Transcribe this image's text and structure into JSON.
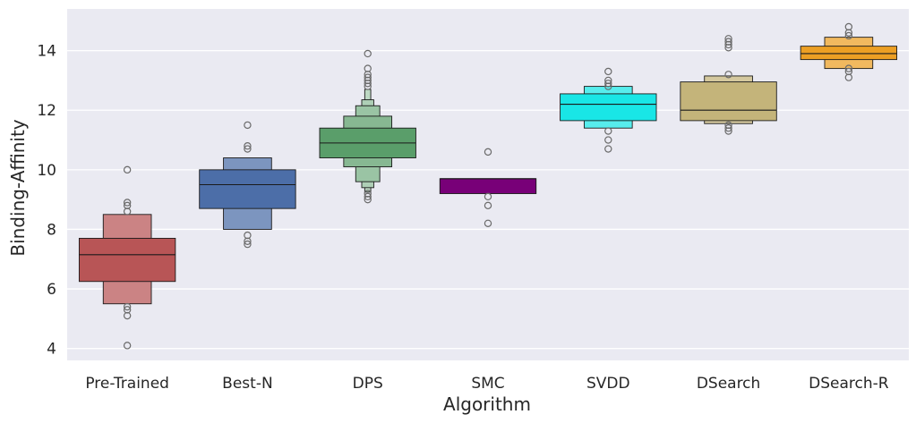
{
  "chart_data": {
    "type": "boxen",
    "title": "",
    "xlabel": "Algorithm",
    "ylabel": "Binding-Affinity",
    "ylim": [
      3.6,
      15.4
    ],
    "yticks": [
      4,
      6,
      8,
      10,
      12,
      14
    ],
    "grid": true,
    "background": "#eaeaf2",
    "categories": [
      "Pre-Trained",
      "Best-N",
      "DPS",
      "SMC",
      "SVDD",
      "DSearch",
      "DSearch-R"
    ],
    "series": [
      {
        "name": "Pre-Trained",
        "color": "#b85556",
        "median": 7.15,
        "levels": [
          [
            6.25,
            7.7
          ],
          [
            5.5,
            8.5
          ]
        ],
        "outliers": [
          4.1,
          5.1,
          5.3,
          5.4,
          8.6,
          8.8,
          8.9,
          10.0
        ]
      },
      {
        "name": "Best-N",
        "color": "#4c6ea8",
        "median": 9.5,
        "levels": [
          [
            8.7,
            10.0
          ],
          [
            8.0,
            10.4
          ]
        ],
        "outliers": [
          7.5,
          7.6,
          7.8,
          10.7,
          10.8,
          11.5
        ]
      },
      {
        "name": "DPS",
        "color": "#5a9e6a",
        "median": 10.9,
        "levels": [
          [
            10.4,
            11.4
          ],
          [
            10.1,
            11.8
          ],
          [
            9.6,
            12.15
          ],
          [
            9.4,
            12.35
          ],
          [
            9.25,
            12.7
          ]
        ],
        "outliers": [
          9.0,
          9.1,
          9.2,
          12.8,
          12.9,
          13.0,
          13.1,
          13.2,
          13.4,
          13.9
        ]
      },
      {
        "name": "SMC",
        "color": "#780078",
        "median": 9.7,
        "levels": [
          [
            9.2,
            9.7
          ]
        ],
        "outliers": [
          8.2,
          8.8,
          9.1,
          10.6
        ]
      },
      {
        "name": "SVDD",
        "color": "#19e6e6",
        "median": 12.2,
        "levels": [
          [
            11.65,
            12.55
          ],
          [
            11.4,
            12.8
          ]
        ],
        "outliers": [
          10.7,
          11.0,
          11.3,
          12.8,
          12.9,
          13.0,
          13.3
        ]
      },
      {
        "name": "DSearch",
        "color": "#c4b47a",
        "median": 12.0,
        "levels": [
          [
            11.65,
            12.95
          ],
          [
            11.55,
            13.15
          ]
        ],
        "outliers": [
          11.3,
          11.4,
          11.5,
          13.2,
          14.1,
          14.2,
          14.3,
          14.4
        ]
      },
      {
        "name": "DSearch-R",
        "color": "#ec9f24",
        "median": 13.9,
        "levels": [
          [
            13.7,
            14.15
          ],
          [
            13.4,
            14.45
          ]
        ],
        "outliers": [
          13.1,
          13.3,
          13.4,
          14.5,
          14.6,
          14.8
        ]
      }
    ]
  }
}
